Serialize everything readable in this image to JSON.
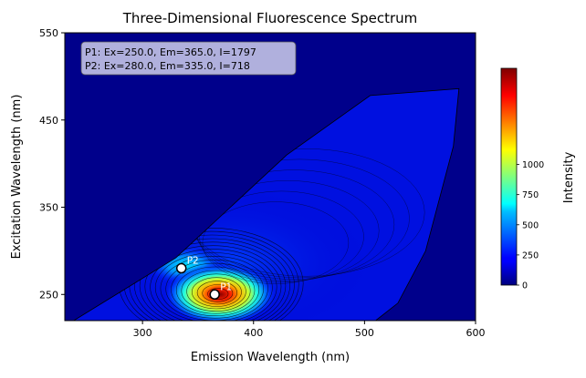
{
  "chart_data": {
    "type": "heatmap",
    "title": "Three-Dimensional Fluorescence Spectrum",
    "xlabel": "Emission Wavelength (nm)",
    "ylabel": "Excitation Wavelength (nm)",
    "xlim": [
      230,
      600
    ],
    "ylim": [
      220,
      550
    ],
    "x_ticks": [
      300,
      400,
      500,
      600
    ],
    "y_ticks": [
      250,
      350,
      450,
      550
    ],
    "colormap": "jet",
    "colorbar": {
      "label": "Intensity",
      "range": [
        0,
        1797
      ],
      "ticks": [
        0,
        250,
        500,
        750,
        1000
      ]
    },
    "peaks": [
      {
        "label": "P1",
        "ex": 250.0,
        "em": 365.0,
        "intensity": 1797
      },
      {
        "label": "P2",
        "ex": 280.0,
        "em": 335.0,
        "intensity": 718
      }
    ],
    "annotation_lines": [
      "P1: Ex=250.0, Em=365.0, I=1797",
      "P2: Ex=280.0, Em=335.0, I=718"
    ],
    "boundary_polygon": [
      {
        "em": 238,
        "ex": 220
      },
      {
        "em": 330,
        "ex": 292
      },
      {
        "em": 430,
        "ex": 410
      },
      {
        "em": 505,
        "ex": 478
      },
      {
        "em": 585,
        "ex": 486
      },
      {
        "em": 580,
        "ex": 420
      },
      {
        "em": 555,
        "ex": 300
      },
      {
        "em": 530,
        "ex": 240
      },
      {
        "em": 510,
        "ex": 220
      }
    ],
    "grid": false
  }
}
